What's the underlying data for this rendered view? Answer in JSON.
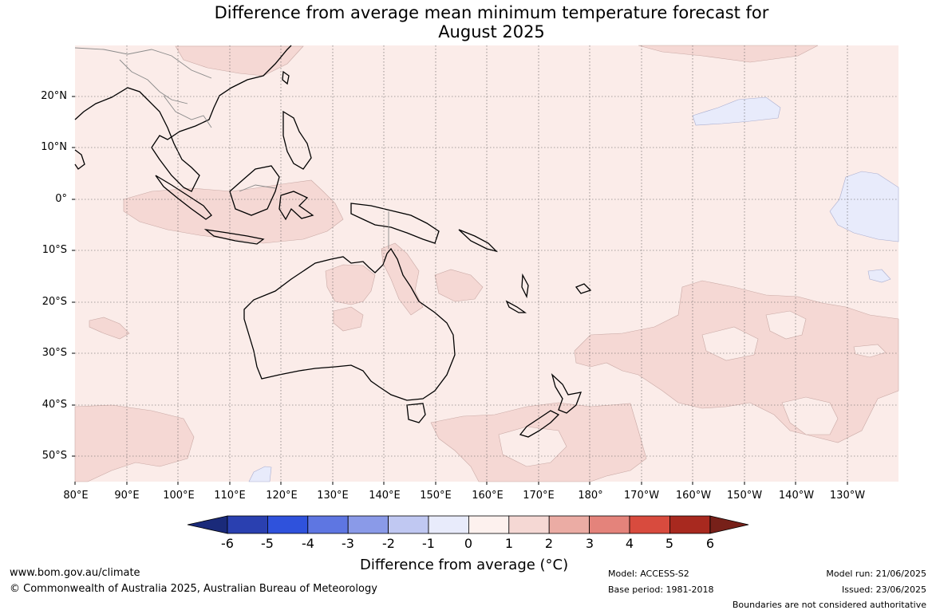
{
  "title": {
    "line1": "Difference from average mean minimum temperature forecast for",
    "line2": "August 2025"
  },
  "map": {
    "lat_labels": [
      "20°N",
      "10°N",
      "0°",
      "10°S",
      "20°S",
      "30°S",
      "40°S",
      "50°S"
    ],
    "lon_labels": [
      "80°E",
      "90°E",
      "100°E",
      "110°E",
      "120°E",
      "130°E",
      "140°E",
      "150°E",
      "160°E",
      "170°E",
      "180°",
      "170°W",
      "160°W",
      "150°W",
      "140°W",
      "130°W"
    ],
    "background_category": "0 to 1",
    "colors": {
      "sea_land_base": "#fbece9",
      "warm_1_2": "#f5d8d4",
      "cool_-1_0": "#e8ebfb",
      "coast": "#000000",
      "border": "#808080",
      "grid": "#555555"
    }
  },
  "colorbar": {
    "ticks": [
      "-6",
      "-5",
      "-4",
      "-3",
      "-2",
      "-1",
      "0",
      "1",
      "2",
      "3",
      "4",
      "5",
      "6"
    ],
    "colors": [
      "#1a2a7a",
      "#2a40b0",
      "#2f52dc",
      "#5e76e2",
      "#8a9ae8",
      "#c0c8f2",
      "#e8ebfb",
      "#fdf1ee",
      "#f5d8d4",
      "#ebaca4",
      "#e4837b",
      "#d84b3e",
      "#a8291f",
      "#772019"
    ],
    "label": "Difference from average (°C)"
  },
  "footer": {
    "website": "www.bom.gov.au/climate",
    "copyright": "© Commonwealth of Australia 2025, Australian Bureau of Meteorology",
    "model": "Model: ACCESS-S2",
    "base_period": "Base period: 1981-2018",
    "model_run": "Model run: 21/06/2025",
    "issued": "Issued: 23/06/2025",
    "disclaimer": "Boundaries are not considered authoritative"
  }
}
